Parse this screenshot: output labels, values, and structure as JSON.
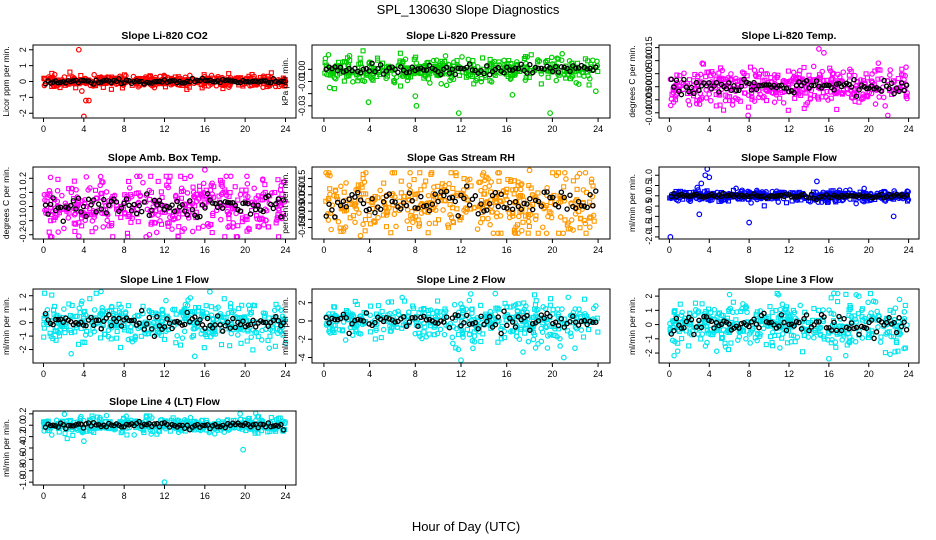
{
  "figure": {
    "title": "SPL_130630  Slope Diagnostics",
    "xlabel": "Hour of Day (UTC)"
  },
  "chart_data": [
    {
      "type": "scatter",
      "title": "Slope Li-820 CO2",
      "ylabel": "Licor ppm per min.",
      "xlim": [
        0,
        24
      ],
      "ylim": [
        -2.3,
        2.3
      ],
      "xticks": [
        0,
        4,
        8,
        12,
        16,
        20,
        24
      ],
      "yticks": [
        -2,
        -1,
        0,
        1,
        2
      ],
      "ytick_labels": [
        "-2",
        "-1",
        "0",
        "1",
        "2"
      ],
      "series_color": "#ff0000",
      "mean_color": "#000000",
      "spread": 0.2,
      "outliers": [
        [
          3.5,
          2.0
        ],
        [
          4.2,
          -1.2
        ],
        [
          4.5,
          -1.2
        ],
        [
          4.0,
          -2.2
        ],
        [
          3.8,
          -0.6
        ]
      ]
    },
    {
      "type": "scatter",
      "title": "Slope Li-820 Pressure",
      "ylabel": "kPa per min.",
      "xlim": [
        0,
        24
      ],
      "ylim": [
        -0.04,
        0.02
      ],
      "xticks": [
        0,
        4,
        8,
        12,
        16,
        20,
        24
      ],
      "yticks": [
        -0.03,
        -0.02,
        -0.01,
        0.0
      ],
      "ytick_labels": [
        "-0.03",
        "",
        "-0.01",
        "0.00"
      ],
      "series_color": "#00cc00",
      "mean_color": "#000000",
      "spread": 0.006,
      "outliers": [
        [
          0.5,
          -0.015
        ],
        [
          3.9,
          -0.027
        ],
        [
          8.0,
          -0.022
        ],
        [
          8.1,
          -0.03
        ],
        [
          11.8,
          -0.036
        ],
        [
          16.5,
          -0.021
        ],
        [
          19.8,
          -0.036
        ],
        [
          23.8,
          -0.018
        ],
        [
          4.2,
          -0.008
        ]
      ]
    },
    {
      "type": "scatter",
      "title": "Slope Li-820 Temp.",
      "ylabel": "degrees C per min.",
      "xlim": [
        0,
        24
      ],
      "ylim": [
        -0.012,
        0.016
      ],
      "xticks": [
        0,
        4,
        8,
        12,
        16,
        20,
        24
      ],
      "yticks": [
        -0.01,
        -0.005,
        0.0,
        0.005,
        0.01,
        0.015
      ],
      "ytick_labels": [
        "-0.010",
        "-0.005",
        "0.000",
        "0.005",
        "0.010",
        "0.015"
      ],
      "series_color": "#ff00ff",
      "mean_color": "#000000",
      "spread": 0.004,
      "outliers": [
        [
          7.9,
          -0.011
        ],
        [
          15.0,
          0.0145
        ],
        [
          15.5,
          0.013
        ],
        [
          3.3,
          0.009
        ]
      ]
    },
    {
      "type": "scatter",
      "title": "Slope Amb. Box Temp.",
      "ylabel": "degrees C per min.",
      "xlim": [
        0,
        24
      ],
      "ylim": [
        -0.23,
        0.28
      ],
      "xticks": [
        0,
        4,
        8,
        12,
        16,
        20,
        24
      ],
      "yticks": [
        -0.2,
        -0.1,
        0.0,
        0.1,
        0.2
      ],
      "ytick_labels": [
        "-0.2",
        "-0.1",
        "0.0",
        "0.1",
        "0.2"
      ],
      "series_color": "#ff00ff",
      "mean_color": "#000000",
      "spread": 0.11,
      "outliers": [
        [
          16.0,
          0.26
        ],
        [
          3.5,
          -0.21
        ],
        [
          10.5,
          -0.2
        ]
      ]
    },
    {
      "type": "scatter",
      "title": "Slope Gas Stream RH",
      "ylabel": "percent per min.",
      "xlim": [
        0,
        24
      ],
      "ylim": [
        -0.22,
        0.22
      ],
      "xticks": [
        0,
        4,
        8,
        12,
        16,
        20,
        24
      ],
      "yticks": [
        -0.15,
        -0.1,
        -0.05,
        0.0,
        0.05,
        0.1,
        0.15
      ],
      "ytick_labels": [
        "-0.15",
        "-0.10",
        "-0.05",
        "0.00",
        "0.05",
        "0.10",
        "0.15"
      ],
      "series_color": "#ff9900",
      "mean_color": "#000000",
      "spread": 0.11,
      "outliers": [
        [
          18.0,
          0.2
        ],
        [
          3.2,
          -0.2
        ]
      ]
    },
    {
      "type": "scatter",
      "title": "Slope Sample Flow",
      "ylabel": "ml/min per min.",
      "xlim": [
        0,
        24
      ],
      "ylim": [
        -2.1,
        1.4
      ],
      "xticks": [
        0,
        4,
        8,
        12,
        16,
        20,
        24
      ],
      "yticks": [
        -2.0,
        -1.5,
        -1.0,
        -0.5,
        0.0,
        0.5,
        1.0
      ],
      "ytick_labels": [
        "-2.0",
        "-1.5",
        "-1.0",
        "-0.5",
        "0.0",
        "0.5",
        "1.0"
      ],
      "series_color": "#0000ff",
      "mean_color": "#000000",
      "spread": 0.15,
      "outliers": [
        [
          0.1,
          -2.0
        ],
        [
          3.8,
          1.3
        ],
        [
          3.6,
          1.0
        ],
        [
          3.2,
          0.6
        ],
        [
          2.8,
          0.4
        ],
        [
          8.0,
          -1.3
        ],
        [
          14.8,
          0.7
        ],
        [
          22.5,
          -1.0
        ],
        [
          4.0,
          0.9
        ],
        [
          3.0,
          -0.9
        ]
      ]
    },
    {
      "type": "scatter",
      "title": "Slope Line 1 Flow",
      "ylabel": "ml/min per min.",
      "xlim": [
        0,
        24
      ],
      "ylim": [
        -3.0,
        2.5
      ],
      "xticks": [
        0,
        4,
        8,
        12,
        16,
        20,
        24
      ],
      "yticks": [
        -2,
        -1,
        0,
        1,
        2
      ],
      "ytick_labels": [
        "-2",
        "-1",
        "0",
        "1",
        "2"
      ],
      "series_color": "#00e5ee",
      "mean_color": "#000000",
      "spread": 0.9,
      "outliers": [
        [
          15.0,
          -2.5
        ],
        [
          16.5,
          2.3
        ]
      ]
    },
    {
      "type": "scatter",
      "title": "Slope Line 2 Flow",
      "ylabel": "ml/min per min.",
      "xlim": [
        0,
        24
      ],
      "ylim": [
        -4.6,
        3.5
      ],
      "xticks": [
        0,
        4,
        8,
        12,
        16,
        20,
        24
      ],
      "yticks": [
        -4,
        -2,
        0,
        2
      ],
      "ytick_labels": [
        "-4",
        "-2",
        "0",
        "2"
      ],
      "series_color": "#00e5ee",
      "mean_color": "#000000",
      "spread": 1.2,
      "outliers": [
        [
          12.0,
          -4.3
        ],
        [
          21.0,
          -4.0
        ],
        [
          15.0,
          3.0
        ]
      ]
    },
    {
      "type": "scatter",
      "title": "Slope Line 3 Flow",
      "ylabel": "ml/min per min.",
      "xlim": [
        0,
        24
      ],
      "ylim": [
        -2.7,
        2.5
      ],
      "xticks": [
        0,
        4,
        8,
        12,
        16,
        20,
        24
      ],
      "yticks": [
        -2,
        -1,
        0,
        1,
        2
      ],
      "ytick_labels": [
        "-2",
        "-1",
        "0",
        "1",
        "2"
      ],
      "series_color": "#00e5ee",
      "mean_color": "#000000",
      "spread": 0.9,
      "outliers": [
        [
          16.0,
          -2.4
        ],
        [
          16.5,
          2.2
        ],
        [
          19.0,
          2.0
        ]
      ]
    },
    {
      "type": "scatter",
      "title": "Slope Line 4 (LT) Flow",
      "ylabel": "ml/min per min.",
      "xlim": [
        0,
        24
      ],
      "ylim": [
        -1.05,
        0.25
      ],
      "xticks": [
        0,
        4,
        8,
        12,
        16,
        20,
        24
      ],
      "yticks": [
        -1.0,
        -0.8,
        -0.6,
        -0.4,
        -0.2,
        0.0,
        0.2
      ],
      "ytick_labels": [
        "-1.0",
        "-0.8",
        "-0.6",
        "-0.4",
        "-0.2",
        "0.0",
        "0.2"
      ],
      "series_color": "#00e5ee",
      "mean_color": "#000000",
      "spread": 0.08,
      "outliers": [
        [
          12.0,
          -1.0
        ],
        [
          19.8,
          -0.43
        ],
        [
          4.0,
          -0.28
        ],
        [
          19.5,
          0.2
        ]
      ]
    }
  ]
}
